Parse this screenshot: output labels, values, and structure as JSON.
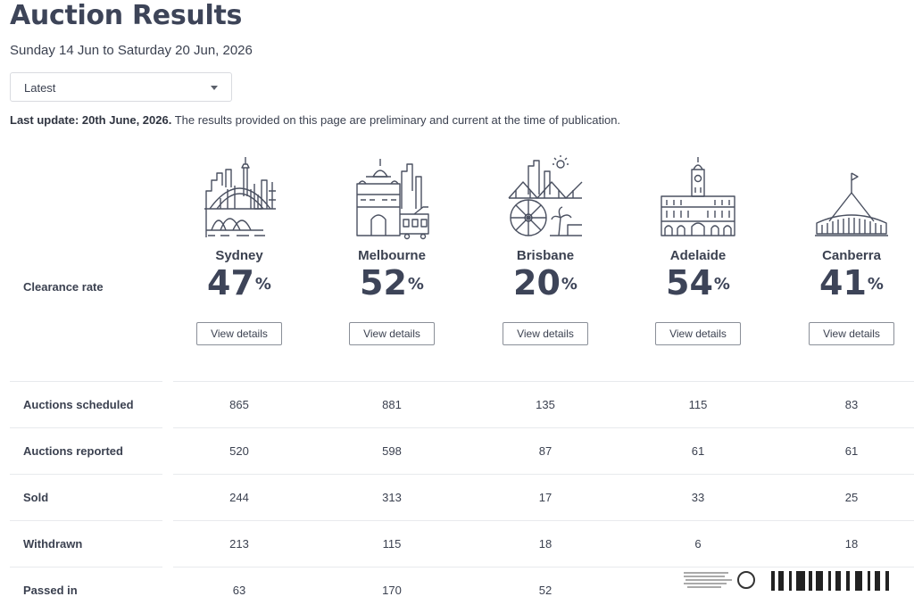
{
  "page": {
    "title": "Auction Results",
    "date_range": "Sunday 14 Jun to Saturday 20 Jun, 2026",
    "dropdown": {
      "selected": "Latest"
    },
    "update_note": {
      "bold": "Last update: 20th June, 2026.",
      "text": " The results provided on this page are preliminary and current at the time of publication."
    },
    "clearance_label": "Clearance rate",
    "view_details_label": "View details"
  },
  "cities": [
    {
      "name": "Sydney",
      "clearance_rate": "47",
      "pct_sign": "%",
      "icon": "sydney-skyline-icon"
    },
    {
      "name": "Melbourne",
      "clearance_rate": "52",
      "pct_sign": "%",
      "icon": "melbourne-skyline-icon"
    },
    {
      "name": "Brisbane",
      "clearance_rate": "20",
      "pct_sign": "%",
      "icon": "brisbane-skyline-icon"
    },
    {
      "name": "Adelaide",
      "clearance_rate": "54",
      "pct_sign": "%",
      "icon": "adelaide-skyline-icon"
    },
    {
      "name": "Canberra",
      "clearance_rate": "41",
      "pct_sign": "%",
      "icon": "canberra-skyline-icon"
    }
  ],
  "stats": [
    {
      "label": "Auctions scheduled",
      "values": [
        "865",
        "881",
        "135",
        "115",
        "83"
      ]
    },
    {
      "label": "Auctions reported",
      "values": [
        "520",
        "598",
        "87",
        "61",
        "61"
      ]
    },
    {
      "label": "Sold",
      "values": [
        "244",
        "313",
        "17",
        "33",
        "25"
      ]
    },
    {
      "label": "Withdrawn",
      "values": [
        "213",
        "115",
        "18",
        "6",
        "18"
      ]
    },
    {
      "label": "Passed in",
      "values": [
        "63",
        "170",
        "52",
        "",
        ""
      ]
    }
  ],
  "colors": {
    "text": "#3b4150",
    "heading": "#3d4458",
    "border": "#d9dbe0",
    "icon_stroke": "#4a5060"
  }
}
